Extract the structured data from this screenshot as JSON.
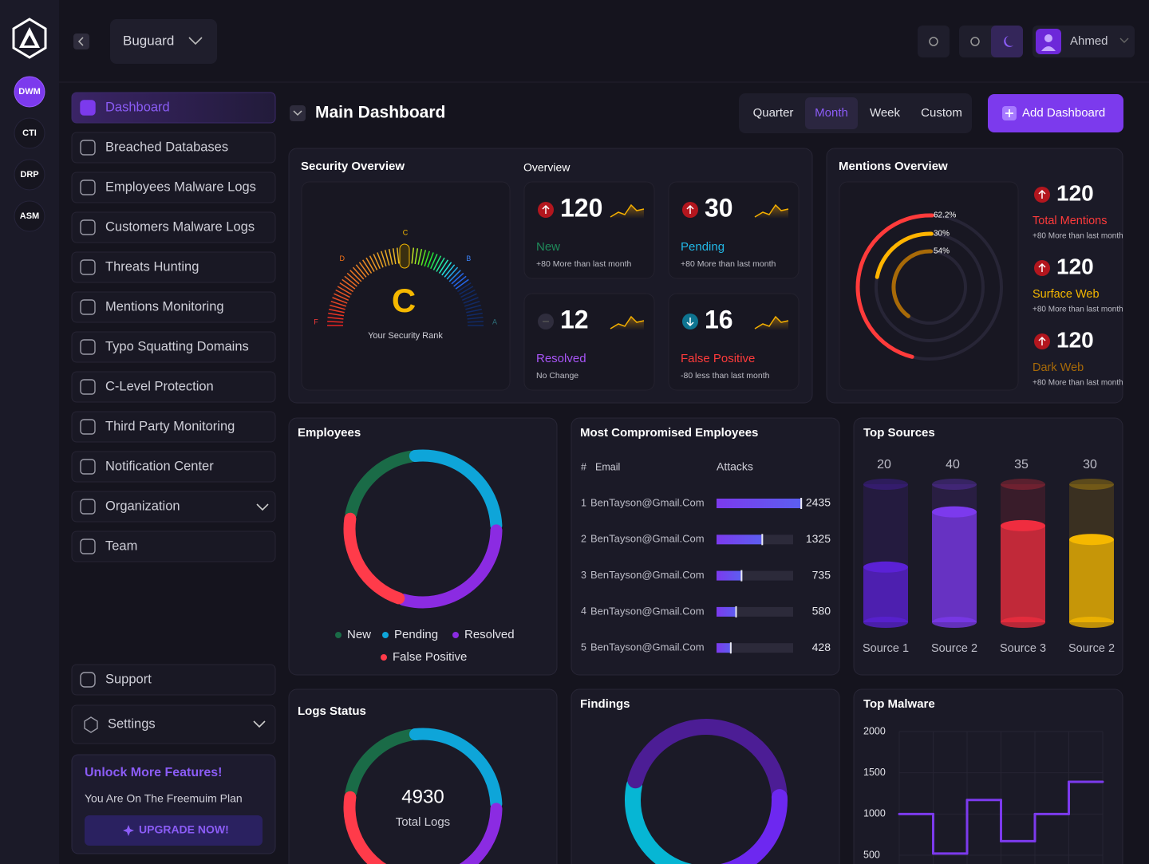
{
  "header": {
    "workspace": "Buguard",
    "user": "Ahmed"
  },
  "rail": [
    "DWM",
    "CTI",
    "DRP",
    "ASM"
  ],
  "sidebar": {
    "active": 0,
    "items": [
      {
        "label": "Dashboard"
      },
      {
        "label": "Breached Databases"
      },
      {
        "label": "Employees Malware Logs"
      },
      {
        "label": "Customers Malware Logs"
      },
      {
        "label": "Threats Hunting"
      },
      {
        "label": "Mentions Monitoring"
      },
      {
        "label": "Typo Squatting Domains"
      },
      {
        "label": "C-Level Protection"
      },
      {
        "label": "Third Party Monitoring"
      },
      {
        "label": "Notification Center"
      },
      {
        "label": "Organization",
        "expandable": true
      },
      {
        "label": "Team"
      }
    ],
    "support": "Support",
    "settings": {
      "label": "Settings",
      "expandable": true
    },
    "promo": {
      "title": "Unlock More Features!",
      "text": "You Are On The  Freemuim Plan",
      "button": "UPGRADE NOW!"
    }
  },
  "toolbar": {
    "title": "Main Dashboard",
    "periods": [
      "Quarter",
      "Month",
      "Week",
      "Custom"
    ],
    "active_period": 1,
    "add": "Add Dashboard"
  },
  "security": {
    "title": "Security Overview",
    "rank": "C",
    "rank_label": "Your Security Rank",
    "grades": [
      {
        "label": "F",
        "color": "#ff3b3b"
      },
      {
        "label": "D",
        "color": "#f97316"
      },
      {
        "label": "C",
        "color": "#f5b800"
      },
      {
        "label": "B",
        "color": "#3b82f6"
      },
      {
        "label": "A",
        "color": "#2e6f7a"
      }
    ]
  },
  "overview": {
    "title": "Overview",
    "cards": [
      {
        "value": 120,
        "label": "New",
        "note": "+80 More than last month",
        "color": "#1f8a5a",
        "trend": "up"
      },
      {
        "value": 30,
        "label": "Pending",
        "note": "+80 More than last month",
        "color": "#22b8e6",
        "trend": "up"
      },
      {
        "value": 12,
        "label": "Resolved",
        "note": "No Change",
        "color": "#a855f7",
        "trend": "flat"
      },
      {
        "value": 16,
        "label": "False Positive",
        "note": "-80 less than last month",
        "color": "#ff3b3b",
        "trend": "down"
      }
    ]
  },
  "mentions": {
    "title": "Mentions Overview",
    "arcs": [
      {
        "value": 62.2,
        "label": "62.2%",
        "color": "#ff3b3b"
      },
      {
        "value": 30,
        "label": "30%",
        "color": "#ffb400"
      },
      {
        "value": 54,
        "label": "54%",
        "color": "#a86a08"
      }
    ],
    "items": [
      {
        "value": 120,
        "label": "Total Mentions",
        "note": "+80 More than last month",
        "color": "#ff3b3b"
      },
      {
        "value": 120,
        "label": "Surface Web",
        "note": "+80 More than last month",
        "color": "#f5b800"
      },
      {
        "value": 120,
        "label": "Dark Web",
        "note": "+80 More than last month",
        "color": "#a86a08"
      }
    ]
  },
  "employees": {
    "title": "Employees",
    "series": [
      {
        "name": "New",
        "value": 20,
        "color": "#1a6b47"
      },
      {
        "name": "Pending",
        "value": 27,
        "color": "#0ea5d9"
      },
      {
        "name": "Resolved",
        "value": 30,
        "color": "#8b2be2"
      },
      {
        "name": "False Positive",
        "value": 23,
        "color": "#ff3b4a"
      }
    ]
  },
  "compromised": {
    "title": "Most Compromised Employees",
    "headers": [
      "#",
      "Email",
      "Attacks"
    ],
    "xlim": [
      0,
      2500
    ],
    "rows": [
      {
        "rank": 1,
        "email": "BenTayson@Gmail.Com",
        "value": 2435
      },
      {
        "rank": 2,
        "email": "BenTayson@Gmail.Com",
        "value": 1325
      },
      {
        "rank": 3,
        "email": "BenTayson@Gmail.Com",
        "value": 735
      },
      {
        "rank": 4,
        "email": "BenTayson@Gmail.Com",
        "value": 580
      },
      {
        "rank": 5,
        "email": "BenTayson@Gmail.Com",
        "value": 428
      }
    ]
  },
  "sources": {
    "type": "bar",
    "title": "Top Sources",
    "categories": [
      "Source 1",
      "Source 2",
      "Source 3",
      "Source 2"
    ],
    "values": [
      20,
      40,
      35,
      30
    ],
    "colors": [
      "#5b21d6",
      "#7c3aed",
      "#ef2d3f",
      "#f5b800"
    ],
    "ylim": [
      0,
      50
    ]
  },
  "logs": {
    "title": "Logs Status",
    "total": 4930,
    "total_label": "Total Logs",
    "series": [
      {
        "value": 20,
        "color": "#1a6b47"
      },
      {
        "value": 27,
        "color": "#0ea5d9"
      },
      {
        "value": 30,
        "color": "#8b2be2"
      },
      {
        "value": 23,
        "color": "#ff3b4a"
      }
    ]
  },
  "findings": {
    "title": "Findings",
    "series": [
      {
        "value": 26,
        "color": "#06b6d4"
      },
      {
        "value": 45,
        "color": "#4c1d95"
      },
      {
        "value": 29,
        "color": "#6d28f0"
      }
    ]
  },
  "malware": {
    "type": "line",
    "title": "Top Malware",
    "values": [
      1000,
      520,
      1170,
      670,
      1000,
      1390
    ],
    "color": "#7c3aed",
    "ylim": [
      500,
      2000
    ],
    "yticks": [
      2000,
      1500,
      1000,
      500
    ]
  }
}
